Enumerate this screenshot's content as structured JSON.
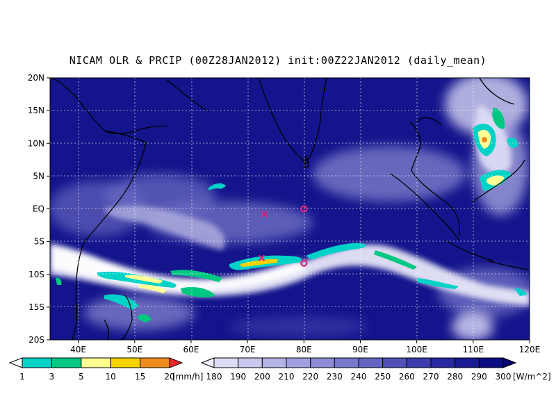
{
  "title": "NICAM OLR & PRCIP (00Z28JAN2012) init:00Z22JAN2012 (daily_mean)",
  "map": {
    "lon_range": [
      35,
      120
    ],
    "lat_range": [
      -20,
      20
    ],
    "lat_ticks": [
      "20N",
      "15N",
      "10N",
      "5N",
      "EQ",
      "5S",
      "10S",
      "15S",
      "20S"
    ],
    "lon_ticks": [
      "40E",
      "50E",
      "60E",
      "70E",
      "80E",
      "90E",
      "100E",
      "110E",
      "120E"
    ],
    "grid": "dotted",
    "markers": [
      {
        "type": "cross-icon",
        "lon": 73,
        "lat": -0.8,
        "color": "#e0207a"
      },
      {
        "type": "circle-icon",
        "lon": 80,
        "lat": 0,
        "color": "#e0207a"
      },
      {
        "type": "cross-icon",
        "lon": 72.5,
        "lat": -7.5,
        "color": "#e0207a"
      },
      {
        "type": "circle-icon",
        "lon": 80,
        "lat": -8.3,
        "color": "#e0207a"
      }
    ]
  },
  "precip_bar": {
    "labels": [
      "1",
      "3",
      "5",
      "10",
      "15",
      "20"
    ],
    "unit": "[mm/h]",
    "colors": [
      "#00d2c8",
      "#00c882",
      "#ffff96",
      "#f5d200",
      "#f08c1e",
      "#f02828"
    ]
  },
  "olr_bar": {
    "labels": [
      "180",
      "190",
      "200",
      "210",
      "220",
      "230",
      "240",
      "250",
      "260",
      "270",
      "280",
      "290",
      "300"
    ],
    "unit": "[W/m^2]",
    "colors": [
      "#eeeeff",
      "#dcdcf5",
      "#c8c8ee",
      "#b4b4e6",
      "#a0a0de",
      "#8c8cd6",
      "#7878cc",
      "#6464c2",
      "#5050b6",
      "#3c3cac",
      "#2828a0",
      "#1a1a92",
      "#0c0c82",
      "#00006e"
    ]
  }
}
